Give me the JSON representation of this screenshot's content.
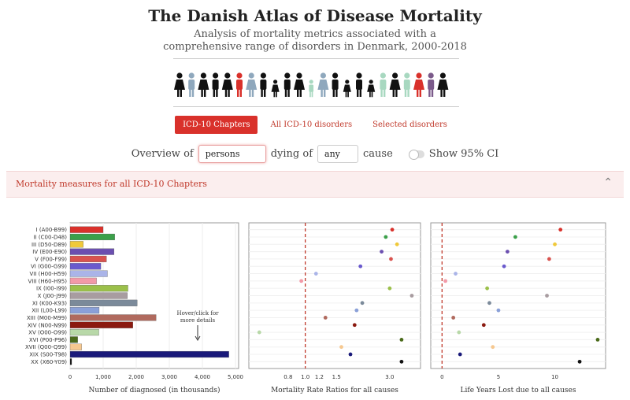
{
  "header": {
    "title": "The Danish Atlas of Disease Mortality",
    "subtitle_line1": "Analysis of mortality metrics associated with a",
    "subtitle_line2": "comprehensive range of disorders in Denmark, 2000-2018"
  },
  "people_colors": [
    "#111111",
    "#8fa8bd",
    "#111111",
    "#111111",
    "#111111",
    "#d9312b",
    "#8fa8bd",
    "#111111",
    "#111111",
    "#111111",
    "#111111",
    "#a8d8c0",
    "#8fa8bd",
    "#111111",
    "#111111",
    "#111111",
    "#111111",
    "#a8d8c0",
    "#111111",
    "#a8d8c0",
    "#d9312b",
    "#7b5a8a",
    "#111111"
  ],
  "tabs": {
    "chapters": "ICD-10 Chapters",
    "all": "All ICD-10 disorders",
    "selected": "Selected disorders"
  },
  "overview": {
    "prefix": "Overview of",
    "population": "persons",
    "middle": "dying of",
    "cause": "any",
    "suffix": "cause",
    "toggle_label": "Show 95% CI"
  },
  "panel": {
    "title": "Mortality measures for all ICD-10 Chapters"
  },
  "chart_data": {
    "type": "bar",
    "categories": [
      "I (A00-B99)",
      "II (C00-D48)",
      "III (D50-D89)",
      "IV (E00-E90)",
      "V (F00-F99)",
      "VI (G00-G99)",
      "VII (H00-H59)",
      "VIII (H60-H95)",
      "IX (I00-I99)",
      "X (J00-J99)",
      "XI (K00-K93)",
      "XII (L00-L99)",
      "XIII (M00-M99)",
      "XIV (N00-N99)",
      "XV (O00-O99)",
      "XVI (P00-P96)",
      "XVII (Q00-Q99)",
      "XIX (S00-T98)",
      "XX (X60-Y09)"
    ],
    "colors": [
      "#d9312b",
      "#3ba04a",
      "#f0c93a",
      "#6b4fb0",
      "#d9534f",
      "#6a5acd",
      "#aab4e8",
      "#f29aa8",
      "#9bc04a",
      "#a89ca0",
      "#7b8a9a",
      "#8aa0d8",
      "#b06a5e",
      "#8b1a10",
      "#b8d8a8",
      "#4a6a1a",
      "#f6c890",
      "#1a1a7a",
      "#111111"
    ],
    "series": [
      {
        "name": "Number of diagnosed (in thousands)",
        "values": [
          1000,
          1350,
          400,
          1330,
          1100,
          930,
          1130,
          800,
          1750,
          1730,
          2030,
          880,
          2600,
          1900,
          870,
          230,
          350,
          4800,
          40
        ]
      },
      {
        "name": "Mortality Rate Ratios for all causes",
        "values": [
          3.1,
          2.85,
          3.3,
          2.7,
          3.05,
          2.05,
          1.15,
          0.95,
          3.0,
          4.0,
          2.1,
          1.95,
          1.3,
          1.9,
          0.55,
          3.5,
          1.6,
          1.8,
          3.5
        ]
      },
      {
        "name": "Life Years Lost due to all causes",
        "values": [
          10.5,
          6.5,
          10.0,
          5.8,
          9.5,
          5.5,
          1.2,
          0.3,
          4.0,
          9.3,
          4.2,
          5.0,
          1.0,
          3.7,
          1.5,
          13.8,
          4.5,
          1.6,
          12.2
        ]
      }
    ],
    "panels": [
      {
        "xlabel": "Number of diagnosed (in thousands)",
        "ticks": [
          0,
          1000,
          2000,
          3000,
          4000,
          5000
        ],
        "tick_labels": [
          "0",
          "1,000",
          "2,000",
          "3,000",
          "4,000",
          "5,000"
        ],
        "xlim": [
          0,
          5000
        ],
        "note_line1": "Hover/click for",
        "note_line2": "more details"
      },
      {
        "xlabel": "Mortality Rate Ratios for all causes",
        "ticks": [
          0.8,
          1.0,
          1.2,
          1.5,
          3.0
        ],
        "tick_labels": [
          "0.8",
          "1.0",
          "1.2",
          "1.5",
          "3.0"
        ],
        "reference": 1.0
      },
      {
        "xlabel": "Life Years Lost due to all causes",
        "ticks": [
          0,
          5,
          10
        ],
        "tick_labels": [
          "0",
          "5",
          "10"
        ],
        "xlim": [
          -1,
          14.5
        ],
        "reference": 0
      }
    ]
  }
}
